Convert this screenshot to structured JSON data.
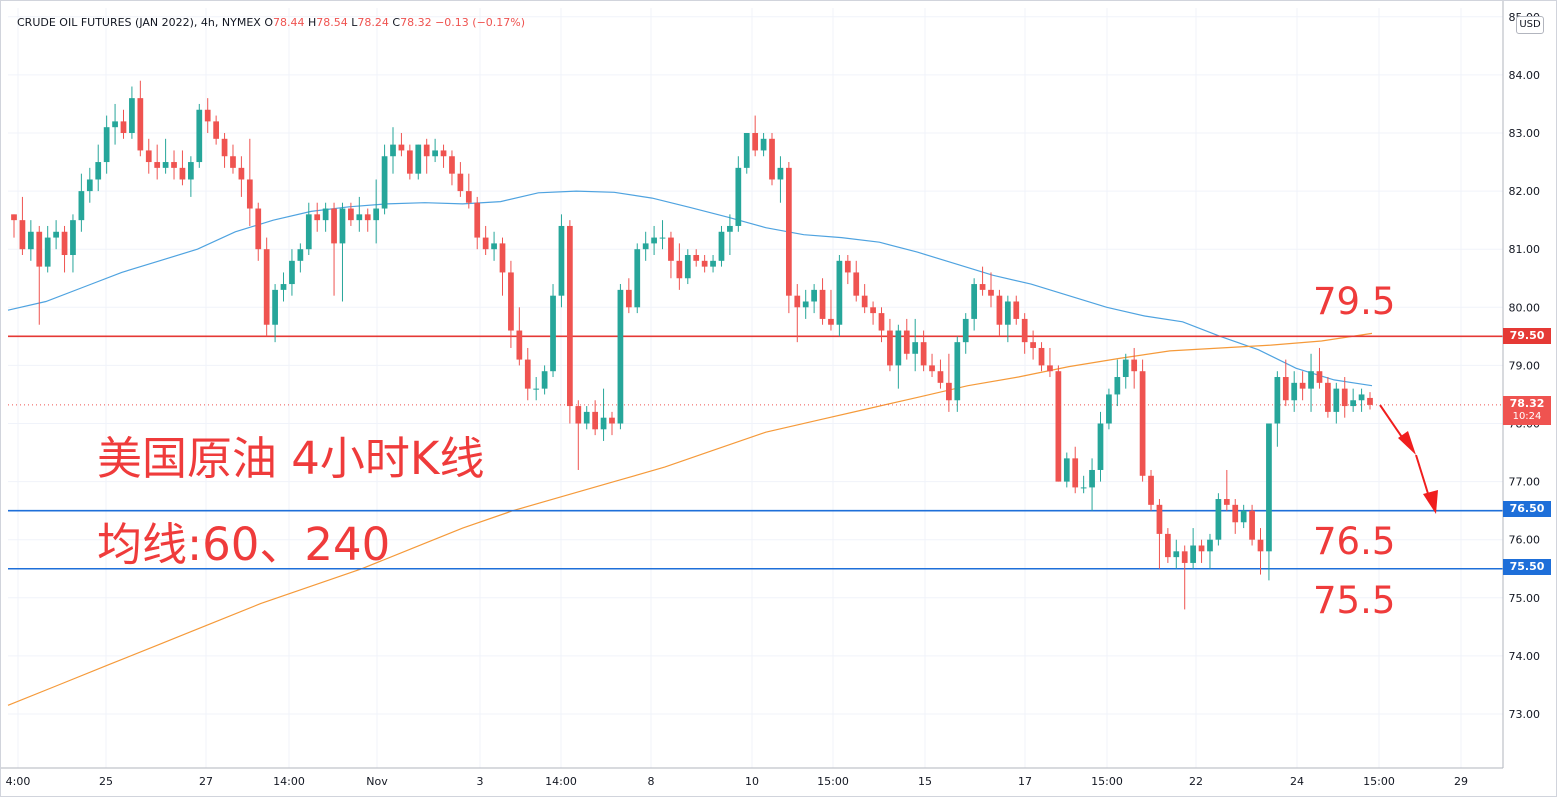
{
  "header": {
    "symbol": "CRUDE OIL FUTURES (JAN 2022), 4h, NYMEX",
    "o_label": "O",
    "o_value": "78.44",
    "h_label": "H",
    "h_value": "78.54",
    "l_label": "L",
    "l_value": "78.24",
    "c_label": "C",
    "c_value": "78.32",
    "change": "−0.13 (−0.17%)"
  },
  "currency": "USD",
  "annotations": {
    "title": "美国原油 4小时K线",
    "subtitle": "均线:60、240",
    "level_high": "79.5",
    "level_mid": "76.5",
    "level_low": "75.5"
  },
  "price_tags": {
    "resistance": "79.50",
    "current_price": "78.32",
    "countdown": "10:24",
    "support_1": "76.50",
    "support_2": "75.50"
  },
  "colors": {
    "up": "#26a69a",
    "down": "#ef5350",
    "ma60": "#4fa3e0",
    "ma240": "#f59a3a",
    "resistance_line": "#e53935",
    "support_line": "#1e6fd9",
    "annotation_text": "#ef3b3b"
  },
  "chart_data": {
    "type": "candlestick",
    "y_axis": {
      "range": [
        72.2,
        85.2
      ],
      "ticks": [
        "73.00",
        "74.00",
        "75.00",
        "76.00",
        "77.00",
        "78.00",
        "79.00",
        "80.00",
        "81.00",
        "82.00",
        "83.00",
        "84.00",
        "85.00"
      ]
    },
    "x_axis": {
      "tick_labels": [
        "4:00",
        "25",
        "27",
        "14:00",
        "Nov",
        "3",
        "14:00",
        "8",
        "10",
        "15:00",
        "15",
        "17",
        "15:00",
        "22",
        "24",
        "15:00",
        "29"
      ]
    },
    "horizontal_levels": [
      79.5,
      76.5,
      75.5
    ],
    "series": [
      {
        "name": "candles",
        "ohlc": [
          [
            81.6,
            81.6,
            81.2,
            81.5
          ],
          [
            81.5,
            81.9,
            80.9,
            81.0
          ],
          [
            81.0,
            81.5,
            80.8,
            81.3
          ],
          [
            81.3,
            81.4,
            79.7,
            80.7
          ],
          [
            80.7,
            81.4,
            80.6,
            81.2
          ],
          [
            81.2,
            81.5,
            81.0,
            81.3
          ],
          [
            81.3,
            81.4,
            80.6,
            80.9
          ],
          [
            80.9,
            81.6,
            80.6,
            81.5
          ],
          [
            81.5,
            82.3,
            81.3,
            82.0
          ],
          [
            82.0,
            82.4,
            81.8,
            82.2
          ],
          [
            82.2,
            82.8,
            82.0,
            82.5
          ],
          [
            82.5,
            83.3,
            82.3,
            83.1
          ],
          [
            83.1,
            83.5,
            82.8,
            83.2
          ],
          [
            83.2,
            83.4,
            82.9,
            83.0
          ],
          [
            83.0,
            83.8,
            82.9,
            83.6
          ],
          [
            83.6,
            83.9,
            82.6,
            82.7
          ],
          [
            82.7,
            82.9,
            82.3,
            82.5
          ],
          [
            82.5,
            82.8,
            82.2,
            82.4
          ],
          [
            82.4,
            82.9,
            82.3,
            82.5
          ],
          [
            82.5,
            82.7,
            82.2,
            82.4
          ],
          [
            82.4,
            82.7,
            82.1,
            82.2
          ],
          [
            82.2,
            82.6,
            81.9,
            82.5
          ],
          [
            82.5,
            83.5,
            82.4,
            83.4
          ],
          [
            83.4,
            83.6,
            83.0,
            83.2
          ],
          [
            83.2,
            83.3,
            82.8,
            82.9
          ],
          [
            82.9,
            83.0,
            82.4,
            82.6
          ],
          [
            82.6,
            82.8,
            82.3,
            82.4
          ],
          [
            82.4,
            82.6,
            81.9,
            82.2
          ],
          [
            82.2,
            82.9,
            81.4,
            81.7
          ],
          [
            81.7,
            81.8,
            80.8,
            81.0
          ],
          [
            81.0,
            81.2,
            79.5,
            79.7
          ],
          [
            79.7,
            80.4,
            79.4,
            80.3
          ],
          [
            80.3,
            80.6,
            80.1,
            80.4
          ],
          [
            80.4,
            81.0,
            80.2,
            80.8
          ],
          [
            80.8,
            81.1,
            80.6,
            81.0
          ],
          [
            81.0,
            81.8,
            80.9,
            81.6
          ],
          [
            81.6,
            81.8,
            81.3,
            81.5
          ],
          [
            81.5,
            81.8,
            81.3,
            81.7
          ],
          [
            81.7,
            81.8,
            80.2,
            81.1
          ],
          [
            81.1,
            81.8,
            80.1,
            81.7
          ],
          [
            81.7,
            81.8,
            81.4,
            81.5
          ],
          [
            81.5,
            81.9,
            81.3,
            81.6
          ],
          [
            81.6,
            81.7,
            81.3,
            81.5
          ],
          [
            81.5,
            82.2,
            81.1,
            81.7
          ],
          [
            81.7,
            82.8,
            81.6,
            82.6
          ],
          [
            82.6,
            83.1,
            82.3,
            82.8
          ],
          [
            82.8,
            83.0,
            82.6,
            82.7
          ],
          [
            82.7,
            82.8,
            82.2,
            82.3
          ],
          [
            82.3,
            82.8,
            82.2,
            82.8
          ],
          [
            82.8,
            82.9,
            82.3,
            82.6
          ],
          [
            82.6,
            82.9,
            82.5,
            82.7
          ],
          [
            82.7,
            82.8,
            82.4,
            82.6
          ],
          [
            82.6,
            82.7,
            82.1,
            82.3
          ],
          [
            82.3,
            82.5,
            81.9,
            82.0
          ],
          [
            82.0,
            82.3,
            81.7,
            81.8
          ],
          [
            81.8,
            81.9,
            81.0,
            81.2
          ],
          [
            81.2,
            81.4,
            80.9,
            81.0
          ],
          [
            81.0,
            81.3,
            80.8,
            81.1
          ],
          [
            81.1,
            81.2,
            80.2,
            80.6
          ],
          [
            80.6,
            80.8,
            79.3,
            79.6
          ],
          [
            79.6,
            80.0,
            79.0,
            79.1
          ],
          [
            79.1,
            79.3,
            78.4,
            78.6
          ],
          [
            78.6,
            78.8,
            78.4,
            78.6
          ],
          [
            78.6,
            79.0,
            78.5,
            78.9
          ],
          [
            78.9,
            80.4,
            78.8,
            80.2
          ],
          [
            80.2,
            81.6,
            80.0,
            81.4
          ],
          [
            81.4,
            81.5,
            78.0,
            78.3
          ],
          [
            78.3,
            78.4,
            77.2,
            78.0
          ],
          [
            78.0,
            78.3,
            77.9,
            78.2
          ],
          [
            78.2,
            78.4,
            77.8,
            77.9
          ],
          [
            77.9,
            78.6,
            77.7,
            78.1
          ],
          [
            78.1,
            78.2,
            77.8,
            78.0
          ],
          [
            78.0,
            80.4,
            77.9,
            80.3
          ],
          [
            80.3,
            80.5,
            79.9,
            80.0
          ],
          [
            80.0,
            81.1,
            79.9,
            81.0
          ],
          [
            81.0,
            81.3,
            80.8,
            81.1
          ],
          [
            81.1,
            81.4,
            80.9,
            81.2
          ],
          [
            81.2,
            81.5,
            81.0,
            81.2
          ],
          [
            81.2,
            81.3,
            80.5,
            80.8
          ],
          [
            80.8,
            81.1,
            80.3,
            80.5
          ],
          [
            80.5,
            81.0,
            80.4,
            80.9
          ],
          [
            80.9,
            81.0,
            80.7,
            80.8
          ],
          [
            80.8,
            80.9,
            80.6,
            80.7
          ],
          [
            80.7,
            80.9,
            80.6,
            80.8
          ],
          [
            80.8,
            81.4,
            80.7,
            81.3
          ],
          [
            81.3,
            81.6,
            80.9,
            81.4
          ],
          [
            81.4,
            82.6,
            81.3,
            82.4
          ],
          [
            82.4,
            83.0,
            82.3,
            83.0
          ],
          [
            83.0,
            83.3,
            82.6,
            82.7
          ],
          [
            82.7,
            83.0,
            82.6,
            82.9
          ],
          [
            82.9,
            83.0,
            82.1,
            82.2
          ],
          [
            82.2,
            82.6,
            81.8,
            82.4
          ],
          [
            82.4,
            82.5,
            79.9,
            80.2
          ],
          [
            80.2,
            80.4,
            79.4,
            80.0
          ],
          [
            80.0,
            80.3,
            79.8,
            80.1
          ],
          [
            80.1,
            80.4,
            79.9,
            80.3
          ],
          [
            80.3,
            80.5,
            79.7,
            79.8
          ],
          [
            79.8,
            80.3,
            79.6,
            79.7
          ],
          [
            79.7,
            80.9,
            79.5,
            80.8
          ],
          [
            80.8,
            80.9,
            80.4,
            80.6
          ],
          [
            80.6,
            80.8,
            80.1,
            80.2
          ],
          [
            80.2,
            80.4,
            79.9,
            80.0
          ],
          [
            80.0,
            80.1,
            79.7,
            79.9
          ],
          [
            79.9,
            80.0,
            79.4,
            79.6
          ],
          [
            79.6,
            79.8,
            78.9,
            79.0
          ],
          [
            79.0,
            79.7,
            78.6,
            79.6
          ],
          [
            79.6,
            79.8,
            79.1,
            79.2
          ],
          [
            79.2,
            79.8,
            78.9,
            79.4
          ],
          [
            79.4,
            79.6,
            78.9,
            79.0
          ],
          [
            79.0,
            79.2,
            78.8,
            78.9
          ],
          [
            78.9,
            79.1,
            78.6,
            78.7
          ],
          [
            78.7,
            79.2,
            78.2,
            78.4
          ],
          [
            78.4,
            79.5,
            78.2,
            79.4
          ],
          [
            79.4,
            79.9,
            79.2,
            79.8
          ],
          [
            79.8,
            80.5,
            79.6,
            80.4
          ],
          [
            80.4,
            80.7,
            80.2,
            80.3
          ],
          [
            80.3,
            80.6,
            80.0,
            80.2
          ],
          [
            80.2,
            80.3,
            79.5,
            79.7
          ],
          [
            79.7,
            80.2,
            79.4,
            80.1
          ],
          [
            80.1,
            80.2,
            79.7,
            79.8
          ],
          [
            79.8,
            79.9,
            79.2,
            79.4
          ],
          [
            79.4,
            79.6,
            79.1,
            79.3
          ],
          [
            79.3,
            79.4,
            78.9,
            79.0
          ],
          [
            79.0,
            79.3,
            78.8,
            78.9
          ],
          [
            78.9,
            79.0,
            77.0,
            77.0
          ],
          [
            77.0,
            77.5,
            76.9,
            77.4
          ],
          [
            77.4,
            77.6,
            76.8,
            76.9
          ],
          [
            76.9,
            77.1,
            76.8,
            76.9
          ],
          [
            76.9,
            77.4,
            76.5,
            77.2
          ],
          [
            77.2,
            78.2,
            77.0,
            78.0
          ],
          [
            78.0,
            78.6,
            77.9,
            78.5
          ],
          [
            78.5,
            79.1,
            78.3,
            78.8
          ],
          [
            78.8,
            79.2,
            78.6,
            79.1
          ],
          [
            79.1,
            79.3,
            78.6,
            78.9
          ],
          [
            78.9,
            79.1,
            77.0,
            77.1
          ],
          [
            77.1,
            77.2,
            76.5,
            76.6
          ],
          [
            76.6,
            76.7,
            75.5,
            76.1
          ],
          [
            76.1,
            76.2,
            75.6,
            75.7
          ],
          [
            75.7,
            76.0,
            75.5,
            75.8
          ],
          [
            75.8,
            75.9,
            74.8,
            75.6
          ],
          [
            75.6,
            76.2,
            75.5,
            75.9
          ],
          [
            75.9,
            76.0,
            75.6,
            75.8
          ],
          [
            75.8,
            76.1,
            75.5,
            76.0
          ],
          [
            76.0,
            76.8,
            75.9,
            76.7
          ],
          [
            76.7,
            77.2,
            76.5,
            76.6
          ],
          [
            76.6,
            76.7,
            76.1,
            76.3
          ],
          [
            76.3,
            76.6,
            76.2,
            76.5
          ],
          [
            76.5,
            76.6,
            75.9,
            76.0
          ],
          [
            76.0,
            76.2,
            75.4,
            75.8
          ],
          [
            75.8,
            78.0,
            75.3,
            78.0
          ],
          [
            78.0,
            78.9,
            77.6,
            78.8
          ],
          [
            78.8,
            79.1,
            78.3,
            78.4
          ],
          [
            78.4,
            78.9,
            78.2,
            78.7
          ],
          [
            78.7,
            78.9,
            78.4,
            78.6
          ],
          [
            78.6,
            79.2,
            78.2,
            78.9
          ],
          [
            78.9,
            79.3,
            78.6,
            78.7
          ],
          [
            78.7,
            78.8,
            78.1,
            78.2
          ],
          [
            78.2,
            78.7,
            78.0,
            78.6
          ],
          [
            78.6,
            78.8,
            78.1,
            78.3
          ],
          [
            78.3,
            78.6,
            78.2,
            78.4
          ],
          [
            78.4,
            78.6,
            78.2,
            78.5
          ],
          [
            78.44,
            78.54,
            78.24,
            78.32
          ]
        ]
      },
      {
        "name": "MA60",
        "values": [
          79.95,
          80.1,
          80.35,
          80.6,
          80.8,
          81.0,
          81.3,
          81.5,
          81.65,
          81.73,
          81.78,
          81.8,
          81.78,
          81.82,
          81.97,
          82.0,
          81.98,
          81.88,
          81.72,
          81.55,
          81.37,
          81.25,
          81.2,
          81.12,
          80.95,
          80.75,
          80.55,
          80.4,
          80.2,
          80.0,
          79.85,
          79.75,
          79.5,
          79.27,
          78.95,
          78.75,
          78.65
        ]
      },
      {
        "name": "MA240",
        "values": [
          73.15,
          73.5,
          73.85,
          74.2,
          74.55,
          74.9,
          75.2,
          75.5,
          75.85,
          76.2,
          76.5,
          76.75,
          77.0,
          77.25,
          77.55,
          77.85,
          78.05,
          78.25,
          78.45,
          78.65,
          78.8,
          78.98,
          79.12,
          79.25,
          79.3,
          79.35,
          79.42,
          79.55
        ]
      }
    ]
  }
}
